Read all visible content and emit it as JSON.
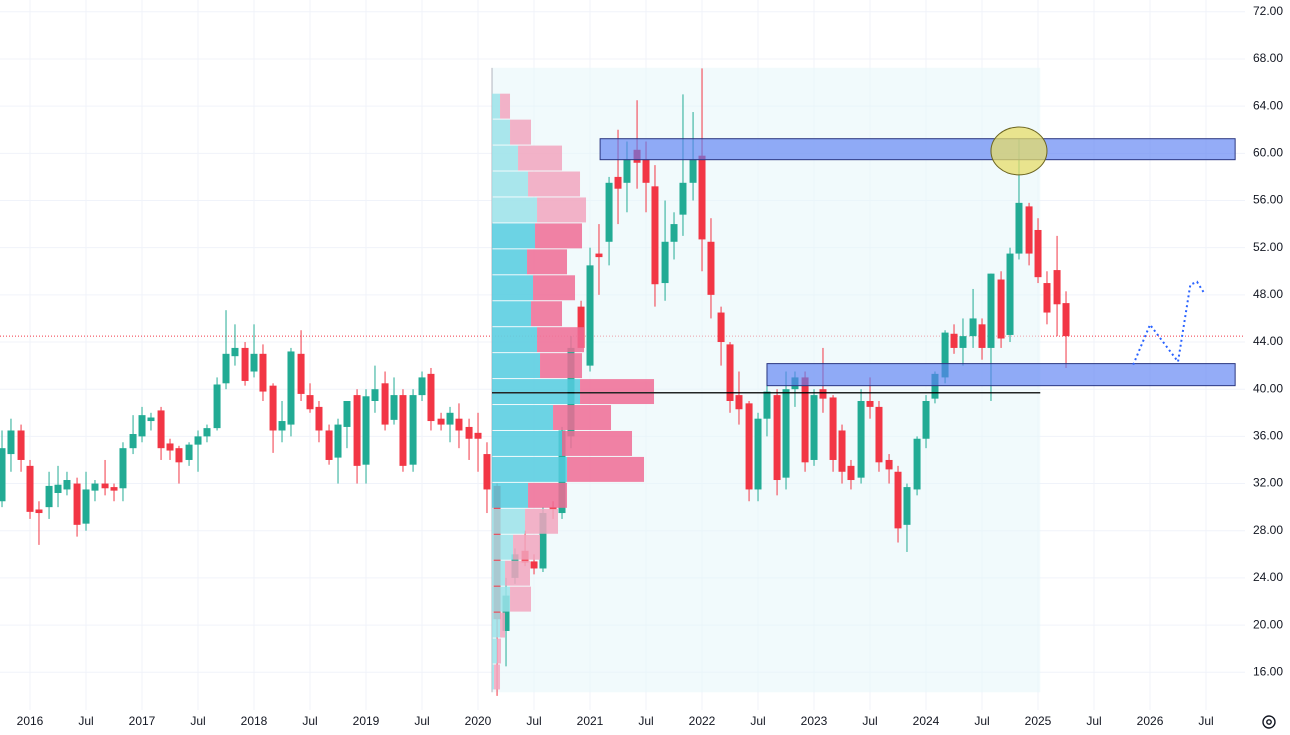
{
  "chart_data": {
    "type": "candlestick",
    "xlim": [
      2015.732,
      2026.848
    ],
    "ylim": [
      12.8,
      73.0
    ],
    "xticks": [
      2016,
      {
        "value": 2016.5,
        "label": "Jul"
      },
      2017,
      {
        "value": 2017.5,
        "label": "Jul"
      },
      2018,
      {
        "value": 2018.5,
        "label": "Jul"
      },
      2019,
      {
        "value": 2019.5,
        "label": "Jul"
      },
      2020,
      {
        "value": 2020.5,
        "label": "Jul"
      },
      2021,
      {
        "value": 2021.5,
        "label": "Jul"
      },
      2022,
      {
        "value": 2022.5,
        "label": "Jul"
      },
      2023,
      {
        "value": 2023.5,
        "label": "Jul"
      },
      2024,
      {
        "value": 2024.5,
        "label": "Jul"
      },
      2025,
      {
        "value": 2025.5,
        "label": "Jul"
      },
      2026,
      {
        "value": 2026.5,
        "label": "Jul"
      }
    ],
    "yticks": [
      {
        "value": 16,
        "label": "16.00"
      },
      {
        "value": 20,
        "label": "20.00"
      },
      {
        "value": 24,
        "label": "24.00"
      },
      {
        "value": 28,
        "label": "28.00"
      },
      {
        "value": 32,
        "label": "32.00"
      },
      {
        "value": 36,
        "label": "36.00"
      },
      {
        "value": 40,
        "label": "40.00"
      },
      {
        "value": 44,
        "label": "44.00"
      },
      {
        "value": 48,
        "label": "48.00"
      },
      {
        "value": 52,
        "label": "52.00"
      },
      {
        "value": 56,
        "label": "56.00"
      },
      {
        "value": 60,
        "label": "60.00"
      },
      {
        "value": 64,
        "label": "64.00"
      },
      {
        "value": 68,
        "label": "68.00"
      },
      {
        "value": 72,
        "label": "72.00"
      }
    ],
    "grid": true,
    "up_color": "#22ab94",
    "down_color": "#f23645",
    "x": [
      2015.75,
      2015.83,
      2015.92,
      2016,
      2016.08,
      2016.17,
      2016.25,
      2016.33,
      2016.42,
      2016.5,
      2016.58,
      2016.67,
      2016.75,
      2016.83,
      2016.92,
      2017,
      2017.08,
      2017.17,
      2017.25,
      2017.33,
      2017.42,
      2017.5,
      2017.58,
      2017.67,
      2017.75,
      2017.83,
      2017.92,
      2018,
      2018.08,
      2018.17,
      2018.25,
      2018.33,
      2018.42,
      2018.5,
      2018.58,
      2018.67,
      2018.75,
      2018.83,
      2018.92,
      2019,
      2019.08,
      2019.17,
      2019.25,
      2019.33,
      2019.42,
      2019.5,
      2019.58,
      2019.67,
      2019.75,
      2019.83,
      2019.92,
      2020,
      2020.08,
      2020.17,
      2020.25,
      2020.33,
      2020.42,
      2020.5,
      2020.58,
      2020.67,
      2020.75,
      2020.83,
      2020.92,
      2021,
      2021.08,
      2021.17,
      2021.25,
      2021.33,
      2021.42,
      2021.5,
      2021.58,
      2021.67,
      2021.75,
      2021.83,
      2021.92,
      2022,
      2022.08,
      2022.17,
      2022.25,
      2022.33,
      2022.42,
      2022.5,
      2022.58,
      2022.67,
      2022.75,
      2022.83,
      2022.92,
      2023,
      2023.08,
      2023.17,
      2023.25,
      2023.33,
      2023.42,
      2023.5,
      2023.58,
      2023.67,
      2023.75,
      2023.83,
      2023.92,
      2024,
      2024.08,
      2024.17,
      2024.25,
      2024.33,
      2024.42,
      2024.5,
      2024.58,
      2024.67,
      2024.75,
      2024.83,
      2024.92,
      2025,
      2025.08,
      2025.17,
      2025.25
    ],
    "open": [
      30.5,
      34.5,
      36.5,
      33.5,
      29.8,
      30,
      31.2,
      31.5,
      32,
      28.6,
      31.4,
      32,
      31.7,
      31.6,
      35,
      36,
      37.3,
      38.2,
      35.4,
      35,
      34,
      35.3,
      36,
      36.7,
      40.5,
      42.8,
      43.5,
      41.5,
      43,
      40.3,
      36.5,
      37,
      43,
      39.5,
      38.5,
      36.5,
      34.2,
      36.8,
      39.5,
      33.6,
      39,
      40.5,
      37.4,
      39.5,
      33.6,
      39.5,
      41.3,
      37.5,
      37,
      37.5,
      36.8,
      36.3,
      34.5,
      31.8,
      19.5,
      24,
      26.3,
      25.4,
      24.8,
      30,
      29.5,
      36,
      47,
      42,
      51.5,
      52.5,
      58,
      57.5,
      60.3,
      59.5,
      57.2,
      49,
      52.5,
      54.8,
      57.5,
      59.8,
      52.5,
      46.5,
      43.8,
      39.5,
      38.8,
      31.5,
      37.5,
      39.5,
      32.5,
      40,
      41,
      34,
      40,
      39.3,
      36.5,
      33.5,
      32.5,
      39,
      38.5,
      34,
      33,
      28.5,
      31.5,
      35.8,
      39.2,
      41,
      44.7,
      43.5,
      44.5,
      45.5,
      43.5,
      49.3,
      44.6,
      51.5,
      55.5,
      53.5,
      49,
      50.1,
      47.3
    ],
    "high": [
      36.5,
      37.5,
      37,
      34,
      30.5,
      33,
      33.5,
      33,
      32.5,
      33,
      32.3,
      34,
      32,
      35.5,
      37.8,
      38.5,
      38,
      38.5,
      35.8,
      35.2,
      35.5,
      36.5,
      37,
      41,
      46.7,
      45.5,
      44,
      45.5,
      43.8,
      40.5,
      39,
      43.5,
      45,
      40.5,
      39,
      37,
      37.5,
      39,
      40,
      40,
      42,
      41.5,
      41,
      40,
      40,
      41.5,
      41.8,
      38,
      38.5,
      38.8,
      37.5,
      38,
      35.5,
      32,
      24,
      26.5,
      28,
      26,
      30,
      30.5,
      36.8,
      44.5,
      47.5,
      52,
      54,
      58,
      62,
      61,
      64.5,
      61,
      59,
      56,
      55,
      65,
      63.5,
      67.2,
      54.5,
      47,
      44,
      41.5,
      39,
      38,
      41.5,
      40,
      41.5,
      41.5,
      41.5,
      40,
      43.5,
      39.5,
      37,
      34,
      40,
      41,
      39,
      34.5,
      33.5,
      32,
      36,
      39.5,
      41.5,
      45,
      45.5,
      46,
      48.5,
      46,
      49.8,
      50,
      52,
      61.2,
      55.8,
      54.5,
      50,
      53,
      48.3
    ],
    "low": [
      30,
      33,
      33,
      29,
      26.8,
      29,
      30,
      31,
      27.5,
      28,
      30.5,
      31,
      30.5,
      30.5,
      34.5,
      35.5,
      36.5,
      34,
      34,
      32,
      33.5,
      33,
      35.5,
      36.5,
      40,
      42,
      40.3,
      41,
      39,
      34.6,
      35.5,
      36,
      39,
      38,
      35.5,
      33.6,
      32,
      35,
      32,
      32,
      38,
      36.5,
      37,
      33,
      33,
      39,
      36.5,
      36.5,
      35.5,
      35,
      34,
      33,
      29.5,
      14,
      16.5,
      23.5,
      25,
      24.3,
      24.5,
      29,
      29,
      35,
      43.5,
      41.5,
      48,
      50.5,
      54,
      55,
      57,
      55,
      47,
      47.5,
      51,
      53,
      56,
      50,
      46,
      42,
      38,
      37,
      30.5,
      30.5,
      36,
      31,
      31.5,
      38.5,
      33,
      33.5,
      38,
      33,
      32,
      31.5,
      32,
      37.5,
      33,
      32,
      27,
      26.2,
      31,
      35,
      38.8,
      40.5,
      43,
      42,
      43.5,
      42.5,
      39,
      43.5,
      44,
      51,
      50.5,
      49,
      45.5,
      44.5,
      41.8
    ],
    "close": [
      35,
      36.5,
      34,
      29.6,
      29.5,
      31.8,
      31.9,
      32.3,
      28.5,
      31.5,
      32,
      31.6,
      31.4,
      35,
      36.2,
      37.8,
      37.6,
      35,
      34.8,
      33.8,
      35.3,
      36,
      36.7,
      40.4,
      43,
      43.5,
      40.7,
      43,
      39.8,
      36.5,
      37.3,
      43.2,
      39.6,
      38.3,
      36.5,
      34,
      37,
      39,
      33.5,
      39.4,
      40,
      37,
      39.5,
      33.5,
      39.5,
      41,
      37.3,
      37,
      38,
      36.5,
      35.8,
      35.8,
      31.5,
      20.5,
      22.5,
      26,
      25.3,
      24.8,
      29.5,
      29.8,
      36.5,
      43.5,
      43.5,
      50.5,
      51.2,
      57.5,
      57,
      59.5,
      59.2,
      57.5,
      48.9,
      52.5,
      54,
      57.5,
      59.5,
      52.7,
      48,
      44,
      39,
      38.3,
      31.5,
      37.5,
      39.8,
      32.3,
      40,
      41,
      33.8,
      39.5,
      39.2,
      34,
      33,
      32.3,
      39,
      38.5,
      33.8,
      33.2,
      28.2,
      31.7,
      35.8,
      39,
      41.3,
      44.8,
      43.5,
      44.5,
      46,
      43.5,
      49.8,
      44.3,
      51.5,
      55.8,
      51.5,
      49.5,
      46.5,
      47.2,
      44.5
    ],
    "price_line": {
      "y": 44.5,
      "color": "#f23645"
    },
    "volume_profile": {
      "x": [
        2020.125,
        2025.02
      ],
      "ylim": [
        14.3,
        67.25
      ],
      "bins": [
        14.5,
        16.7,
        18.9,
        21.1,
        23.3,
        25.5,
        27.7,
        29.9,
        32.1,
        34.3,
        36.5,
        38.7,
        40.9,
        43.1,
        45.3,
        47.5,
        49.7,
        51.9,
        54.1,
        56.3,
        58.5,
        60.7,
        62.9,
        65.1
      ],
      "up": [
        2,
        5,
        8,
        18,
        13,
        21,
        33,
        36,
        75,
        70,
        61,
        88,
        48,
        45,
        39,
        41,
        35,
        43,
        45,
        36,
        26,
        18,
        8
      ],
      "down": [
        6,
        4,
        5,
        21,
        25,
        27,
        33,
        39,
        77,
        70,
        58,
        74,
        42,
        47,
        31,
        42,
        40,
        47,
        49,
        52,
        44,
        21,
        10
      ],
      "value_area": [
        29.9,
        54.1
      ],
      "poc": 39.7,
      "up_color": "#55cde0",
      "down_color": "#f06c95",
      "up_color_outside": "#9de3ea",
      "down_color_outside": "#f3a6bf"
    },
    "zones": [
      {
        "x": [
          2021.09,
          2026.76
        ],
        "y": [
          59.46,
          61.24
        ]
      },
      {
        "x": [
          2022.58,
          2026.76
        ],
        "y": [
          40.3,
          42.17
        ]
      }
    ],
    "ellipse": {
      "cx": 2024.83,
      "cy": 60.2,
      "rx": 0.25,
      "ry": 2.03
    },
    "projection": {
      "x": [
        2025.85,
        2026.0,
        2026.25,
        2026.36,
        2026.42,
        2026.48
      ],
      "y": [
        42.08,
        45.47,
        42.33,
        48.86,
        49.1,
        48.2
      ],
      "color": "#2962ff"
    }
  }
}
